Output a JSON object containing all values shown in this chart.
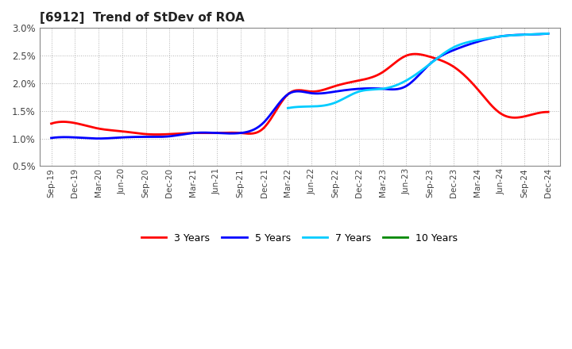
{
  "title": "[6912]  Trend of StDev of ROA",
  "background_color": "#ffffff",
  "plot_bg_color": "#ffffff",
  "grid_color": "#aaaaaa",
  "ylim": [
    0.005,
    0.03
  ],
  "yticks": [
    0.005,
    0.01,
    0.015,
    0.02,
    0.025,
    0.03
  ],
  "legend_labels": [
    "3 Years",
    "5 Years",
    "7 Years",
    "10 Years"
  ],
  "legend_colors": [
    "#ff0000",
    "#0000ff",
    "#00ccff",
    "#008800"
  ],
  "x_labels": [
    "Sep-19",
    "Dec-19",
    "Mar-20",
    "Jun-20",
    "Sep-20",
    "Dec-20",
    "Mar-21",
    "Jun-21",
    "Sep-21",
    "Dec-21",
    "Mar-22",
    "Jun-22",
    "Sep-22",
    "Dec-22",
    "Mar-23",
    "Jun-23",
    "Sep-23",
    "Dec-23",
    "Mar-24",
    "Jun-24",
    "Sep-24",
    "Dec-24"
  ],
  "series_3y": {
    "x": [
      0,
      1,
      2,
      3,
      4,
      5,
      6,
      7,
      8,
      9,
      10,
      11,
      12,
      13,
      14,
      15,
      16,
      17,
      18,
      19,
      20,
      21
    ],
    "y": [
      0.0127,
      0.0128,
      0.0118,
      0.0113,
      0.0108,
      0.0108,
      0.011,
      0.011,
      0.011,
      0.012,
      0.018,
      0.0185,
      0.0195,
      0.0205,
      0.022,
      0.025,
      0.0248,
      0.023,
      0.019,
      0.0145,
      0.014,
      0.0148
    ],
    "color": "#ff0000"
  },
  "series_5y": {
    "x": [
      0,
      1,
      2,
      3,
      4,
      5,
      6,
      7,
      8,
      9,
      10,
      11,
      12,
      13,
      14,
      15,
      16,
      17,
      18,
      19,
      20,
      21
    ],
    "y": [
      0.0101,
      0.0102,
      0.01,
      0.0102,
      0.0103,
      0.0104,
      0.011,
      0.011,
      0.011,
      0.013,
      0.018,
      0.0182,
      0.0185,
      0.019,
      0.019,
      0.0195,
      0.0235,
      0.026,
      0.0275,
      0.0285,
      0.0288,
      0.029
    ],
    "color": "#0000ff"
  },
  "series_7y": {
    "x": [
      10,
      11,
      12,
      13,
      14,
      15,
      16,
      17,
      18,
      19,
      20,
      21
    ],
    "y": [
      0.0155,
      0.0158,
      0.0165,
      0.0185,
      0.019,
      0.0205,
      0.0235,
      0.0265,
      0.0278,
      0.0285,
      0.0288,
      0.029
    ],
    "color": "#00ccff"
  },
  "series_10y": {
    "x": [],
    "y": [],
    "color": "#008800"
  }
}
